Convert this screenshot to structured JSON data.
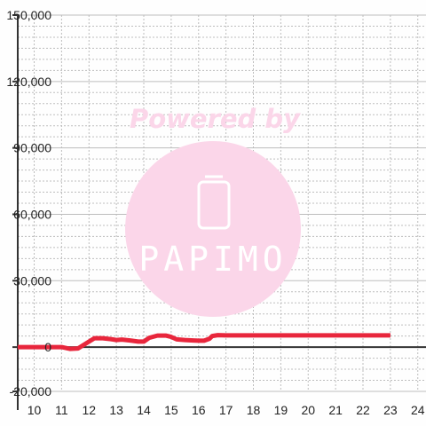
{
  "chart_data": {
    "type": "line",
    "title": "",
    "xlabel": "",
    "ylabel": "",
    "xlim": [
      9.4,
      24.3
    ],
    "ylim": [
      -20000,
      150000
    ],
    "x_ticks": [
      10,
      11,
      12,
      13,
      14,
      15,
      16,
      17,
      18,
      19,
      20,
      21,
      22,
      23,
      24
    ],
    "x_tick_labels": [
      "10",
      "11",
      "12",
      "13",
      "14",
      "15",
      "16",
      "17",
      "18",
      "19",
      "20",
      "21",
      "22",
      "23",
      "24"
    ],
    "y_ticks": [
      150000,
      120000,
      90000,
      60000,
      30000,
      0,
      -20000
    ],
    "y_tick_labels": [
      "150,000",
      "120,000",
      "90,000",
      "60,000",
      "30,000",
      "0",
      "-20,000"
    ],
    "grid": true,
    "series": [
      {
        "x": [
          9.4,
          10.0,
          11.0,
          11.3,
          11.6,
          12.0,
          12.2,
          12.5,
          12.8,
          13.0,
          13.2,
          13.5,
          13.8,
          14.0,
          14.2,
          14.5,
          14.8,
          15.0,
          15.2,
          15.5,
          15.8,
          16.0,
          16.2,
          16.4,
          16.5,
          16.7,
          17.0,
          18.0,
          19.0,
          20.0,
          21.0,
          22.0,
          23.0
        ],
        "y": [
          0,
          0,
          0,
          -800,
          -600,
          2500,
          4000,
          4000,
          3600,
          3200,
          3400,
          3000,
          2500,
          2500,
          4200,
          5200,
          5200,
          4600,
          3500,
          3200,
          3000,
          2900,
          2900,
          3800,
          5000,
          5400,
          5300,
          5300,
          5300,
          5300,
          5300,
          5300,
          5300
        ]
      }
    ],
    "colors": {
      "line": "#e8263c",
      "axis": "#333333",
      "grid": "#bdbdbd",
      "watermark": "#fbd6e9"
    }
  },
  "watermark": {
    "tagline": "Powered by",
    "brand": "PAPIMO",
    "icon": "phone-outline-icon"
  }
}
